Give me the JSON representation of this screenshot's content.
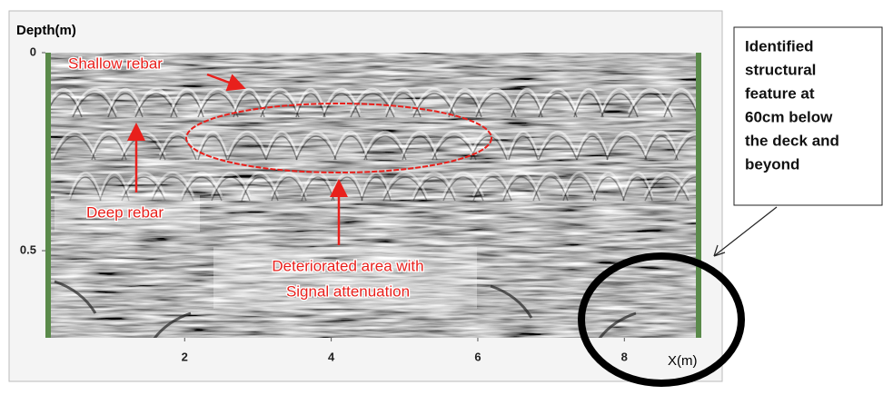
{
  "chart_data": {
    "type": "radargram",
    "y_label": "Depth(m)",
    "x_label": "X(m)",
    "xlim": [
      0.1,
      9.05
    ],
    "xticks": [
      2,
      4,
      6,
      8
    ],
    "ylim": [
      0,
      0.72
    ],
    "yticks": [
      0,
      0.5
    ],
    "y_inverted": true,
    "annotations": [
      {
        "text": "Shallow rebar"
      },
      {
        "text": "Deep rebar"
      },
      {
        "lines": [
          "Deteriorated area with",
          "Signal attenuation"
        ]
      }
    ],
    "callout": {
      "lines": [
        "Identified",
        "structural",
        "feature at",
        "60cm below",
        "the deck and",
        "beyond"
      ]
    }
  }
}
